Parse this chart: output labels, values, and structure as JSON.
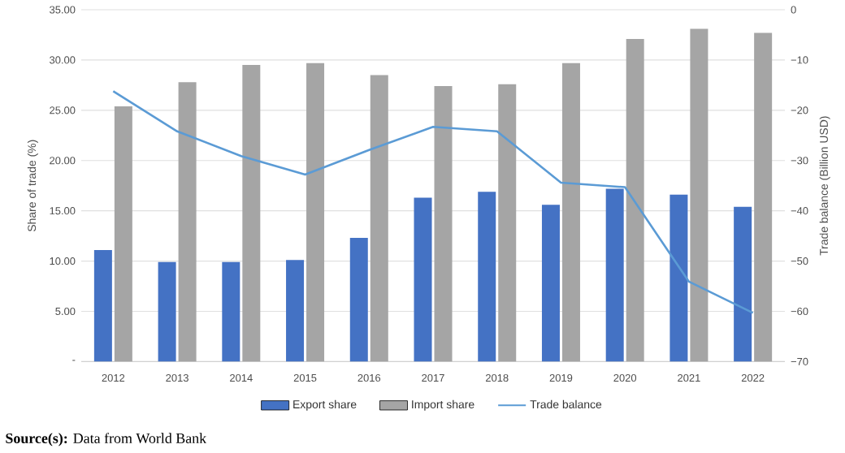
{
  "chart_data": {
    "type": "bar",
    "categories": [
      "2012",
      "2013",
      "2014",
      "2015",
      "2016",
      "2017",
      "2018",
      "2019",
      "2020",
      "2021",
      "2022"
    ],
    "series": [
      {
        "name": "Export share",
        "color": "#4472c4",
        "values": [
          11.1,
          9.9,
          9.9,
          10.1,
          12.3,
          16.3,
          16.9,
          15.6,
          17.2,
          16.6,
          15.4
        ]
      },
      {
        "name": "Import share",
        "color": "#a5a5a5",
        "values": [
          25.4,
          27.8,
          29.5,
          29.7,
          28.5,
          27.4,
          27.6,
          29.7,
          32.1,
          33.1,
          32.7
        ]
      },
      {
        "name": "Trade balance",
        "type": "line",
        "axis": "y2",
        "color": "#5b9bd5",
        "values": [
          -16.2,
          -24.2,
          -29.1,
          -32.8,
          -27.9,
          -23.3,
          -24.2,
          -34.4,
          -35.3,
          -54.1,
          -60.3
        ]
      }
    ],
    "ylabel": "Share of trade (%)",
    "y2label": "Trade balance (Billion USD)",
    "ylim": [
      0,
      35
    ],
    "yticks": [
      {
        "value": 0,
        "label": "-"
      },
      {
        "value": 5,
        "label": "5.00"
      },
      {
        "value": 10,
        "label": "10.00"
      },
      {
        "value": 15,
        "label": "15.00"
      },
      {
        "value": 20,
        "label": "20.00"
      },
      {
        "value": 25,
        "label": "25.00"
      },
      {
        "value": 30,
        "label": "30.00"
      },
      {
        "value": 35,
        "label": "35.00"
      }
    ],
    "y2lim": [
      -70,
      0
    ],
    "y2ticks": [
      {
        "value": -70,
        "label": "−70"
      },
      {
        "value": -60,
        "label": "−60"
      },
      {
        "value": -50,
        "label": "−50"
      },
      {
        "value": -40,
        "label": "−40"
      },
      {
        "value": -30,
        "label": "−30"
      },
      {
        "value": -20,
        "label": "−20"
      },
      {
        "value": -10,
        "label": "−10"
      },
      0
    ],
    "grid": "y",
    "legend": "bottom",
    "marker": "none",
    "line_style": "solid",
    "annotations": [
      "**Source(s):** Data from World Bank"
    ]
  }
}
